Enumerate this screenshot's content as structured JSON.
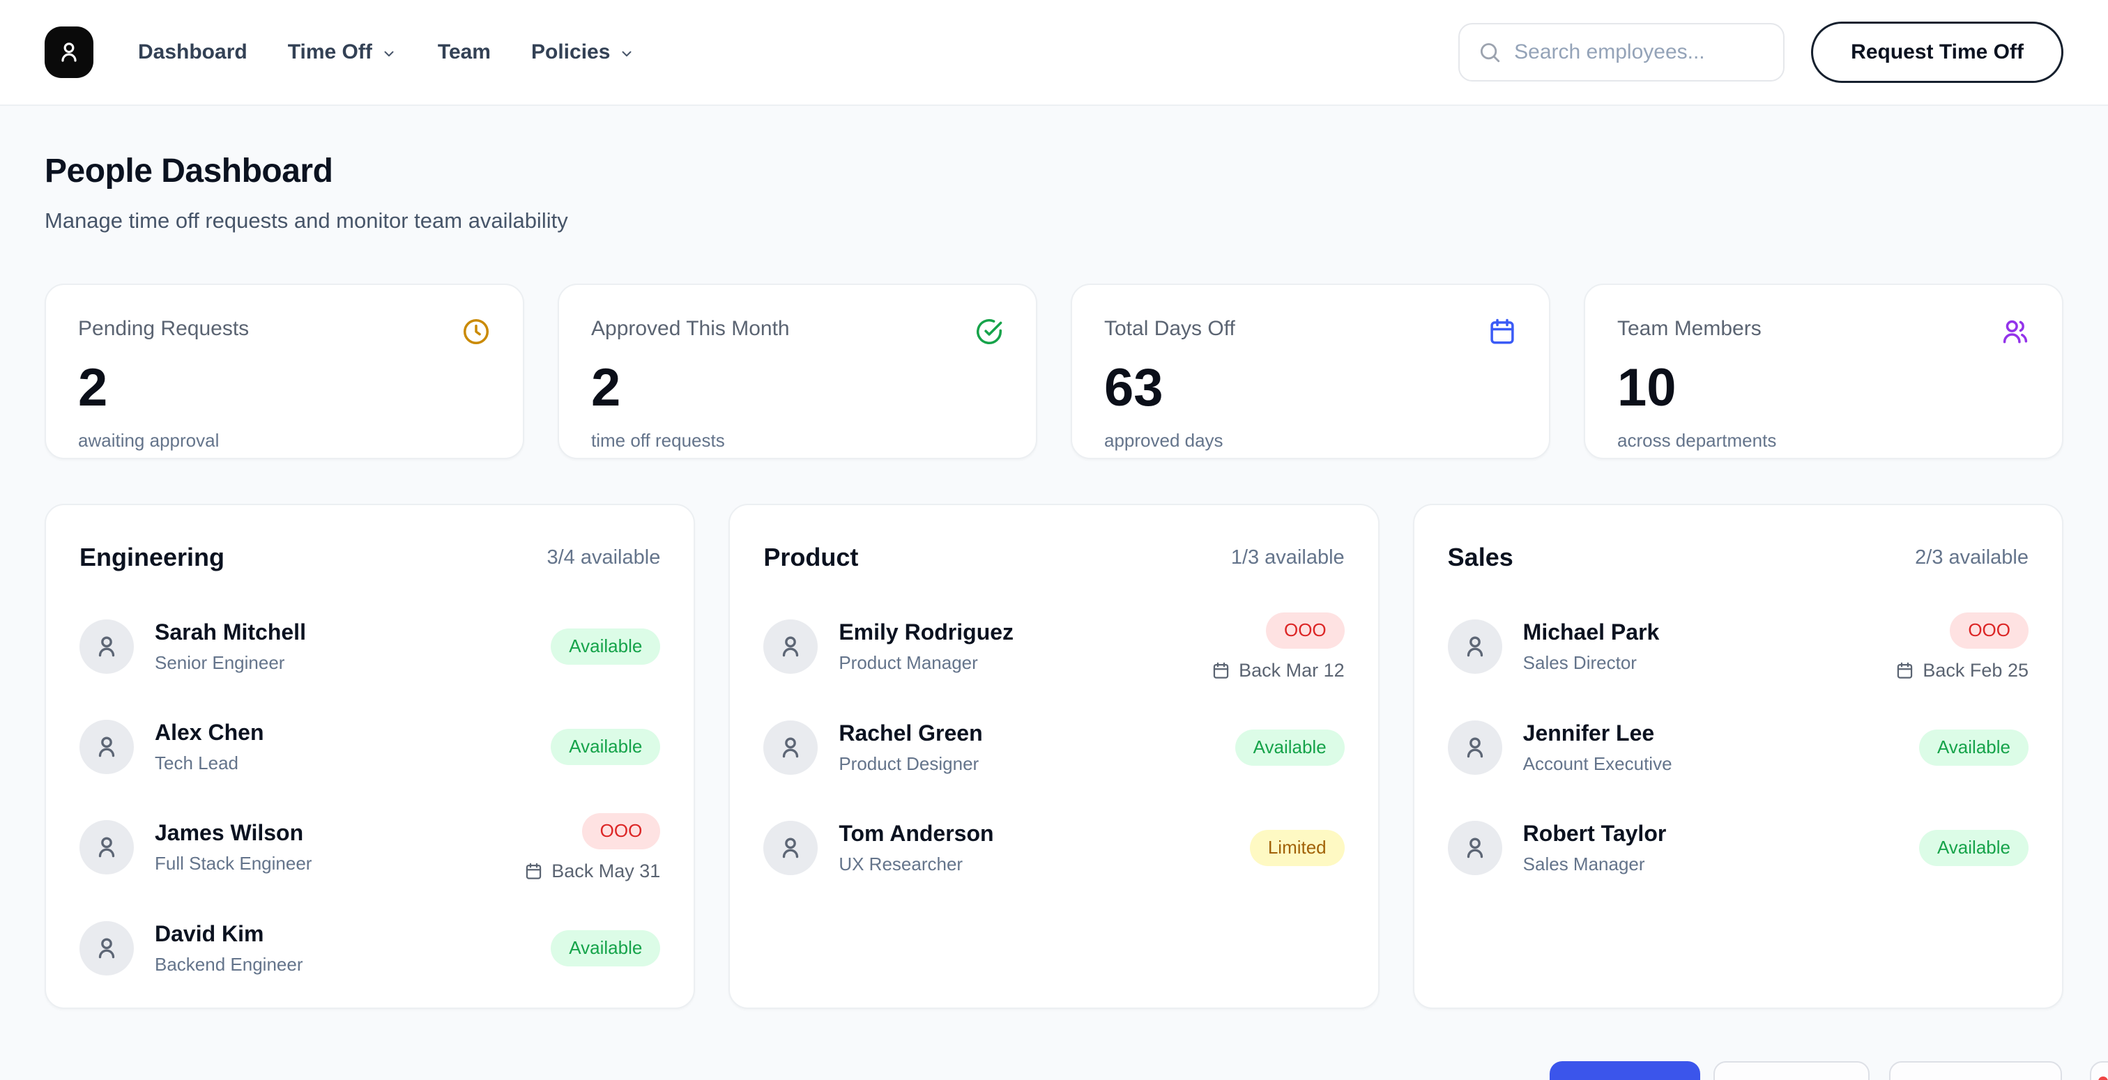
{
  "nav": {
    "items": [
      {
        "label": "Dashboard",
        "dropdown": false
      },
      {
        "label": "Time Off",
        "dropdown": true
      },
      {
        "label": "Team",
        "dropdown": false
      },
      {
        "label": "Policies",
        "dropdown": true
      }
    ],
    "search_placeholder": "Search employees...",
    "request_button": "Request Time Off"
  },
  "header": {
    "title": "People Dashboard",
    "subtitle": "Manage time off requests and monitor team availability"
  },
  "stats": [
    {
      "title": "Pending Requests",
      "value": "2",
      "caption": "awaiting approval",
      "icon": "clock-icon",
      "icon_color": "#ca8a04"
    },
    {
      "title": "Approved This Month",
      "value": "2",
      "caption": "time off requests",
      "icon": "check-circle-icon",
      "icon_color": "#16a34a"
    },
    {
      "title": "Total Days Off",
      "value": "63",
      "caption": "approved days",
      "icon": "calendar-icon",
      "icon_color": "#3b5bf6"
    },
    {
      "title": "Team Members",
      "value": "10",
      "caption": "across departments",
      "icon": "users-icon",
      "icon_color": "#9333ea"
    }
  ],
  "departments": [
    {
      "name": "Engineering",
      "availability": "3/4 available",
      "members": [
        {
          "name": "Sarah Mitchell",
          "role": "Senior Engineer",
          "status": "Available",
          "status_type": "available"
        },
        {
          "name": "Alex Chen",
          "role": "Tech Lead",
          "status": "Available",
          "status_type": "available"
        },
        {
          "name": "James Wilson",
          "role": "Full Stack Engineer",
          "status": "OOO",
          "status_type": "ooo",
          "back": "Back May 31"
        },
        {
          "name": "David Kim",
          "role": "Backend Engineer",
          "status": "Available",
          "status_type": "available"
        }
      ]
    },
    {
      "name": "Product",
      "availability": "1/3 available",
      "members": [
        {
          "name": "Emily Rodriguez",
          "role": "Product Manager",
          "status": "OOO",
          "status_type": "ooo",
          "back": "Back Mar 12"
        },
        {
          "name": "Rachel Green",
          "role": "Product Designer",
          "status": "Available",
          "status_type": "available"
        },
        {
          "name": "Tom Anderson",
          "role": "UX Researcher",
          "status": "Limited",
          "status_type": "limited"
        }
      ]
    },
    {
      "name": "Sales",
      "availability": "2/3 available",
      "members": [
        {
          "name": "Michael Park",
          "role": "Sales Director",
          "status": "OOO",
          "status_type": "ooo",
          "back": "Back Feb 25"
        },
        {
          "name": "Jennifer Lee",
          "role": "Account Executive",
          "status": "Available",
          "status_type": "available"
        },
        {
          "name": "Robert Taylor",
          "role": "Sales Manager",
          "status": "Available",
          "status_type": "available"
        }
      ]
    }
  ],
  "colors": {
    "accent_blue": "#3b55eb",
    "stat_clock": "#ca8a04",
    "stat_check": "#16a34a",
    "stat_calendar": "#3b5bf6",
    "stat_users": "#9333ea",
    "badge_available_bg": "#dcfce7",
    "badge_available_text": "#16a34a",
    "badge_ooo_bg": "#fee2e2",
    "badge_ooo_text": "#dc2626",
    "badge_limited_bg": "#fef9c3",
    "badge_limited_text": "#a16207",
    "notification_dot": "#ef4444"
  }
}
